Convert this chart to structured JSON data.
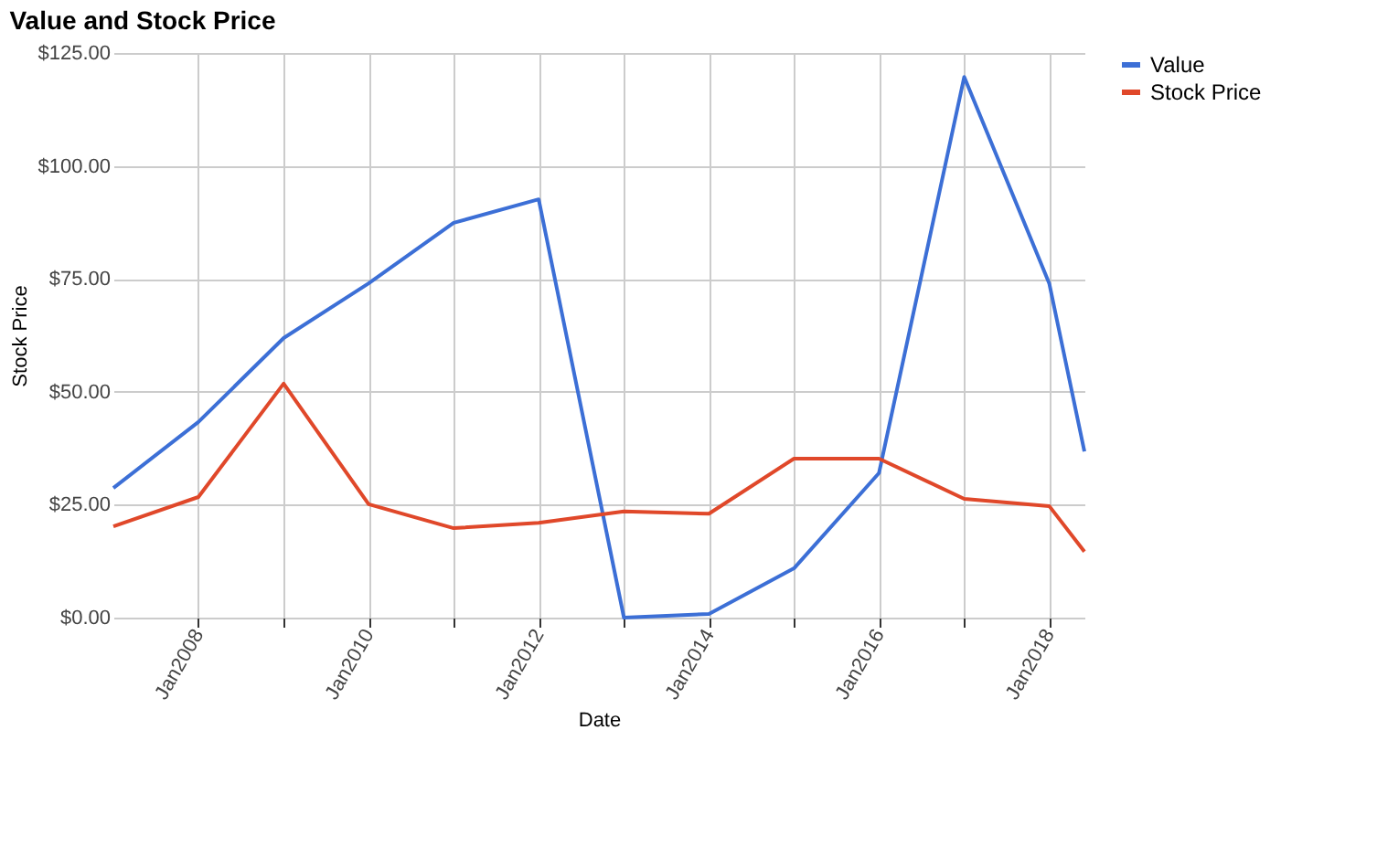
{
  "chart_data": {
    "type": "line",
    "title": "Value and Stock Price",
    "xlabel": "Date",
    "ylabel": "Stock Price",
    "x": [
      "2007-01",
      "2008-01",
      "2009-01",
      "2010-01",
      "2011-01",
      "2012-01",
      "2013-01",
      "2014-01",
      "2015-01",
      "2016-01",
      "2017-01",
      "2018-01",
      "2018-06"
    ],
    "series": [
      {
        "name": "Value",
        "color": "#3c6fd6",
        "values": [
          28.7,
          43.3,
          61.9,
          74,
          87.4,
          92.6,
          0,
          0.8,
          10.9,
          32,
          119.7,
          74,
          36.8
        ]
      },
      {
        "name": "Stock Price",
        "color": "#e0482a",
        "values": [
          20.2,
          26.7,
          51.8,
          25.1,
          19.8,
          21,
          23.5,
          23,
          35.2,
          35.2,
          26.3,
          24.7,
          14.6
        ]
      }
    ],
    "xlim": [
      "2007-01",
      "2018-06"
    ],
    "xticks": [
      {
        "value": "2008-01",
        "label": "Jan2008"
      },
      {
        "value": "2009-01",
        "label": null
      },
      {
        "value": "2010-01",
        "label": "Jan2010"
      },
      {
        "value": "2011-01",
        "label": null
      },
      {
        "value": "2012-01",
        "label": "Jan2012"
      },
      {
        "value": "2013-01",
        "label": null
      },
      {
        "value": "2014-01",
        "label": "Jan2014"
      },
      {
        "value": "2015-01",
        "label": null
      },
      {
        "value": "2016-01",
        "label": "Jan2016"
      },
      {
        "value": "2017-01",
        "label": null
      },
      {
        "value": "2018-01",
        "label": "Jan2018"
      }
    ],
    "ylim": [
      0,
      125
    ],
    "yticks": [
      {
        "value": 0,
        "label": "$0.00"
      },
      {
        "value": 25,
        "label": "$25.00"
      },
      {
        "value": 50,
        "label": "$50.00"
      },
      {
        "value": 75,
        "label": "$75.00"
      },
      {
        "value": 100,
        "label": "$100.00"
      },
      {
        "value": 125,
        "label": "$125.00"
      }
    ],
    "grid": true,
    "legend": "top right",
    "marker": "none",
    "line_style": "solid"
  }
}
